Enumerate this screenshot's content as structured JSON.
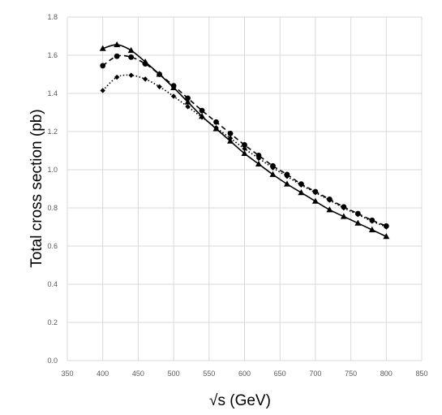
{
  "chart_data": {
    "type": "line",
    "title": "",
    "xlabel": "√s (GeV)",
    "ylabel": "Total cross section (pb)",
    "xlim": [
      350,
      850
    ],
    "ylim": [
      0,
      1.8
    ],
    "x_ticks": [
      "350",
      "400",
      "450",
      "500",
      "550",
      "600",
      "650",
      "700",
      "750",
      "800",
      "850"
    ],
    "y_ticks": [
      "0.0",
      "0.2",
      "0.4",
      "0.6",
      "0.8",
      "1.0",
      "1.2",
      "1.4",
      "1.6",
      "1.8"
    ],
    "grid": true,
    "legend": "none",
    "series": [
      {
        "marker": "triangle",
        "line_style": "solid",
        "x": [
          400,
          420,
          440,
          460,
          480,
          500,
          520,
          540,
          560,
          580,
          600,
          620,
          640,
          660,
          680,
          700,
          720,
          740,
          760,
          780,
          800
        ],
        "y": [
          1.635,
          1.655,
          1.625,
          1.565,
          1.5,
          1.43,
          1.355,
          1.28,
          1.215,
          1.15,
          1.085,
          1.03,
          0.975,
          0.925,
          0.88,
          0.835,
          0.79,
          0.755,
          0.72,
          0.685,
          0.65
        ]
      },
      {
        "marker": "circle",
        "line_style": "dashed",
        "x": [
          400,
          420,
          440,
          460,
          480,
          500,
          520,
          540,
          560,
          580,
          600,
          620,
          640,
          660,
          680,
          700,
          720,
          740,
          760,
          780,
          800
        ],
        "y": [
          1.545,
          1.595,
          1.59,
          1.555,
          1.5,
          1.44,
          1.375,
          1.31,
          1.25,
          1.19,
          1.13,
          1.075,
          1.02,
          0.975,
          0.925,
          0.885,
          0.845,
          0.805,
          0.77,
          0.735,
          0.705
        ]
      },
      {
        "marker": "diamond",
        "line_style": "dotted",
        "x": [
          400,
          420,
          440,
          460,
          480,
          500,
          520,
          540,
          560,
          580,
          600,
          620,
          640,
          660,
          680,
          700,
          720,
          740,
          760,
          780,
          800
        ],
        "y": [
          1.415,
          1.485,
          1.495,
          1.475,
          1.435,
          1.385,
          1.33,
          1.275,
          1.22,
          1.165,
          1.11,
          1.06,
          1.01,
          0.965,
          0.92,
          0.88,
          0.84,
          0.8,
          0.765,
          0.73,
          0.7
        ]
      }
    ]
  }
}
